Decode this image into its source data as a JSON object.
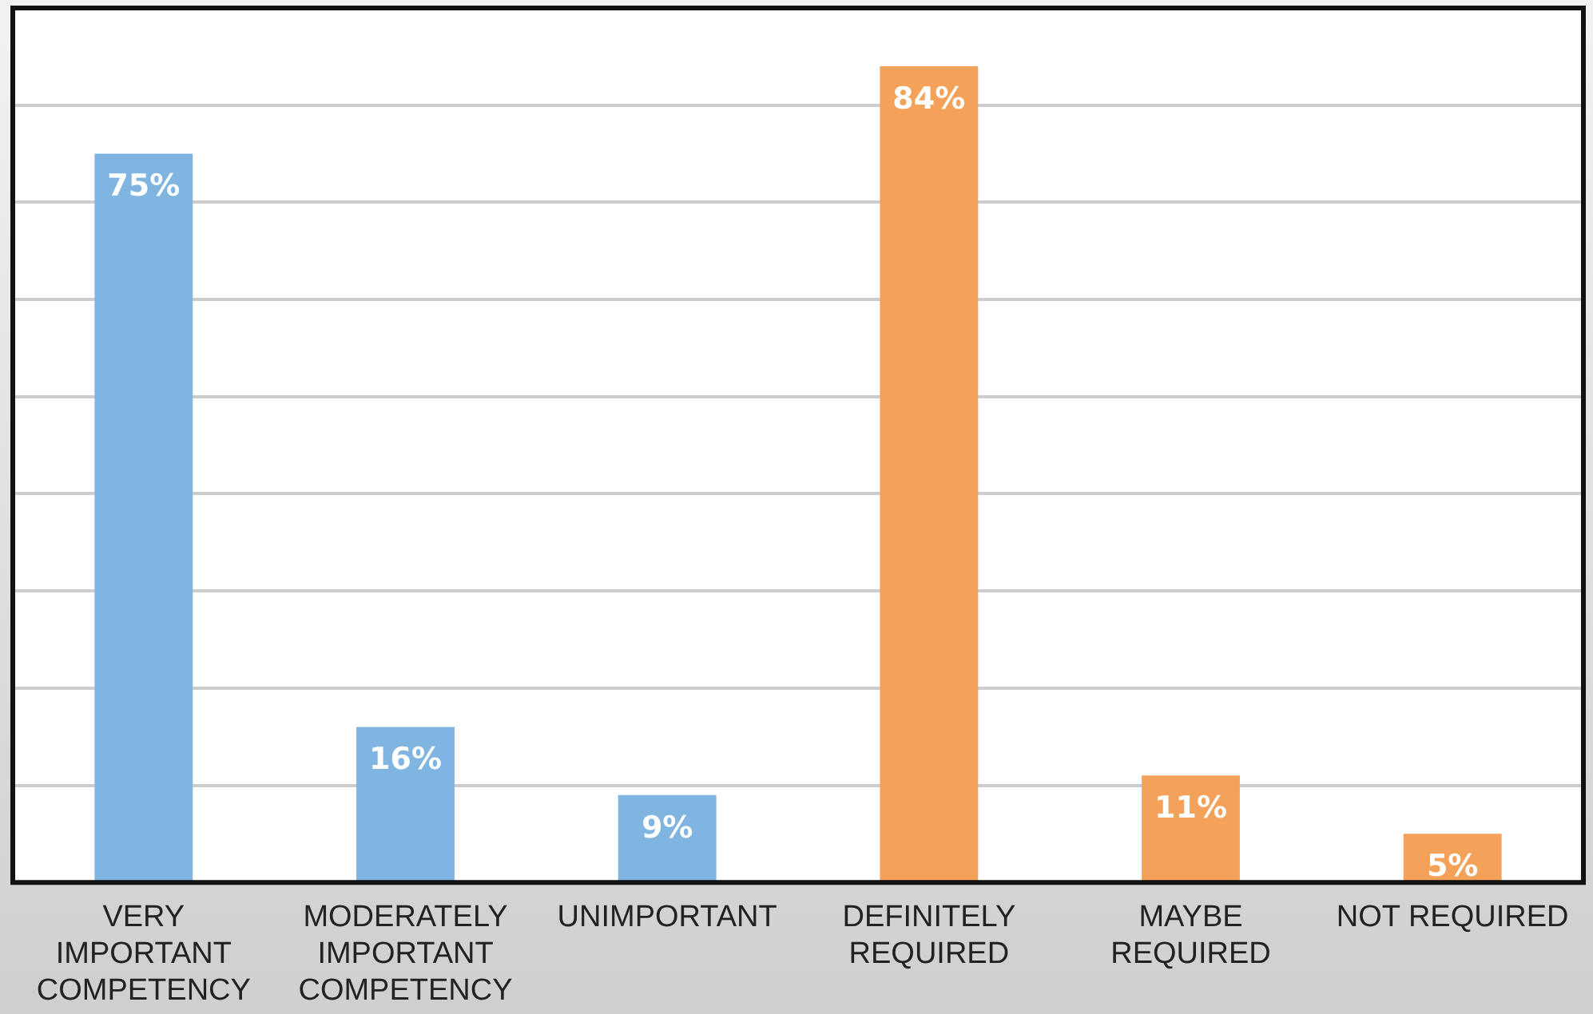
{
  "chart_data": {
    "type": "bar",
    "categories": [
      "VERY\nIMPORTANT\nCOMPETENCY",
      "MODERATELY\nIMPORTANT\nCOMPETENCY",
      "UNIMPORTANT",
      "DEFINITELY\nREQUIRED",
      "MAYBE\nREQUIRED",
      "NOT REQUIRED"
    ],
    "values": [
      75,
      16,
      9,
      84,
      11,
      5
    ],
    "colors": [
      "#7fb5e0",
      "#7fb5e0",
      "#7fb5e0",
      "#f4a25a",
      "#f4a25a",
      "#f4a25a"
    ],
    "value_labels": [
      "75%",
      "16%",
      "9%",
      "84%",
      "11%",
      "5%"
    ],
    "ylim": [
      0,
      90
    ],
    "yticks": [
      {
        "value": 0,
        "label": null
      },
      {
        "value": 10,
        "label": null
      },
      {
        "value": 20,
        "label": null
      },
      {
        "value": 30,
        "label": null
      },
      {
        "value": 40,
        "label": null
      },
      {
        "value": 50,
        "label": null
      },
      {
        "value": 60,
        "label": null
      },
      {
        "value": 70,
        "label": null
      },
      {
        "value": 80,
        "label": null
      },
      {
        "value": 90,
        "label": null
      }
    ],
    "tick_labels": "x",
    "grid": "y",
    "legend": false
  }
}
